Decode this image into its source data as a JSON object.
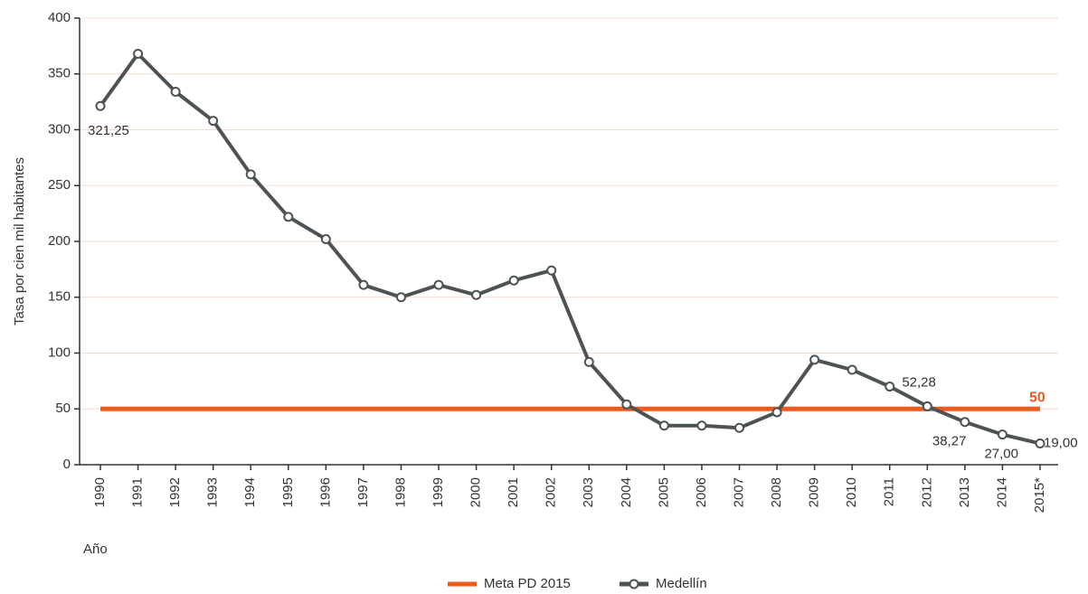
{
  "chart_data": {
    "type": "line",
    "y_label": "Tasa por cien mil habitantes",
    "x_label": "Año",
    "categories": [
      "1990",
      "1991",
      "1992",
      "1993",
      "1994",
      "1995",
      "1996",
      "1997",
      "1998",
      "1999",
      "2000",
      "2001",
      "2002",
      "2003",
      "2004",
      "2005",
      "2006",
      "2007",
      "2008",
      "2009",
      "2010",
      "2011",
      "2012",
      "2013",
      "2014",
      "2015*"
    ],
    "series": [
      {
        "name": "Meta PD 2015",
        "color": "#f05a1a",
        "values": [
          50,
          50,
          50,
          50,
          50,
          50,
          50,
          50,
          50,
          50,
          50,
          50,
          50,
          50,
          50,
          50,
          50,
          50,
          50,
          50,
          50,
          50,
          50,
          50,
          50,
          50
        ],
        "value_labels": [
          null,
          null,
          null,
          null,
          null,
          null,
          null,
          null,
          null,
          null,
          null,
          null,
          null,
          null,
          null,
          null,
          null,
          null,
          null,
          null,
          null,
          null,
          null,
          null,
          null,
          "50"
        ]
      },
      {
        "name": "Medellín",
        "color": "#4d5354",
        "values": [
          321.25,
          368,
          334,
          308,
          260,
          222,
          202,
          161,
          150,
          161,
          152,
          165,
          174,
          92,
          54,
          35,
          35,
          33,
          47,
          94,
          85,
          70,
          52.28,
          38.27,
          27.0,
          19.0
        ],
        "value_labels": [
          "321,25",
          null,
          null,
          null,
          null,
          null,
          null,
          null,
          null,
          null,
          null,
          null,
          null,
          null,
          null,
          null,
          null,
          null,
          null,
          null,
          null,
          null,
          "52,28",
          "38,27",
          "27,00",
          "19,00"
        ]
      }
    ],
    "ylim": [
      0,
      400
    ],
    "yticks": [
      0,
      50,
      100,
      150,
      200,
      250,
      300,
      350,
      400
    ],
    "grid": true
  }
}
